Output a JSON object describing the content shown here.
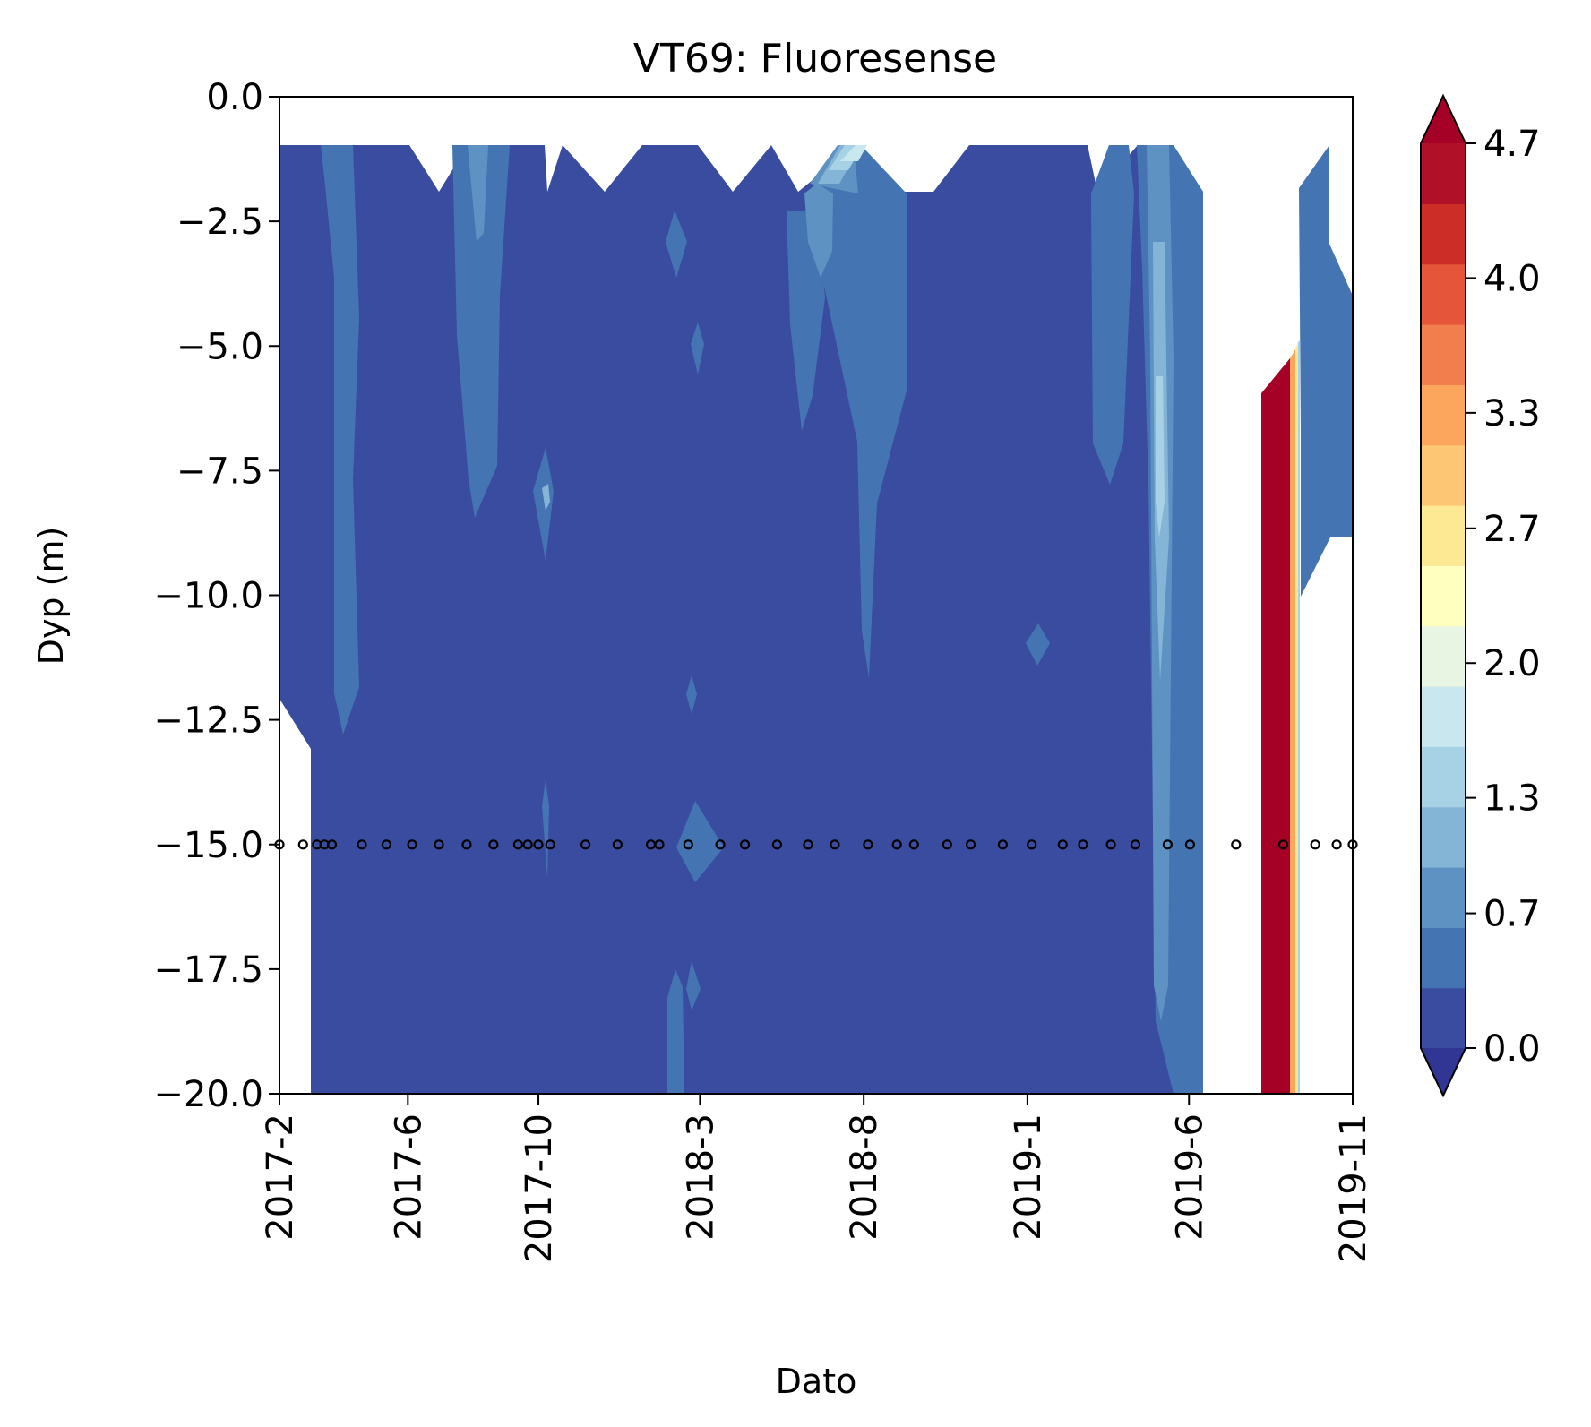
{
  "chart_data": {
    "type": "heatmap",
    "title": "VT69: Fluoresense",
    "xlabel": "Dato",
    "ylabel": "Dyp (m)",
    "x_ticks": [
      "2017-2",
      "2017-6",
      "2017-10",
      "2018-3",
      "2018-8",
      "2019-1",
      "2019-6",
      "2019-11"
    ],
    "x_tick_dates": [
      "2017-02-01",
      "2017-06-01",
      "2017-10-01",
      "2018-03-01",
      "2018-08-01",
      "2019-01-01",
      "2019-06-01",
      "2019-11-01"
    ],
    "x_range": [
      "2017-02-01",
      "2019-11-01"
    ],
    "y_ticks": [
      "0.0",
      "−2.5",
      "−5.0",
      "−7.5",
      "−10.0",
      "−12.5",
      "−15.0",
      "−17.5",
      "−20.0"
    ],
    "y_tick_values": [
      0,
      -2.5,
      -5,
      -7.5,
      -10,
      -12.5,
      -15,
      -17.5,
      -20
    ],
    "ylim": [
      -20,
      0
    ],
    "colorbar": {
      "tick_labels": [
        "4.7",
        "4.0",
        "3.3",
        "2.7",
        "2.0",
        "1.3",
        "0.7",
        "0.0"
      ],
      "tick_values": [
        4.7,
        4.0,
        3.3,
        2.7,
        2.0,
        1.3,
        0.7,
        0.0
      ],
      "vmin": 0.0,
      "vmax": 4.7,
      "extend": "both",
      "levels": [
        0.0,
        0.31,
        0.63,
        0.94,
        1.25,
        1.57,
        1.88,
        2.19,
        2.51,
        2.82,
        3.13,
        3.45,
        3.76,
        4.07,
        4.39,
        4.7
      ],
      "colors": [
        "#3a4c9f",
        "#4574b3",
        "#5e92c3",
        "#84b5d7",
        "#a7d2e5",
        "#c9e7ef",
        "#e8f5e2",
        "#ffffbf",
        "#fde894",
        "#fdc675",
        "#fca55d",
        "#f37e4d",
        "#e45539",
        "#cc2e27",
        "#b01129"
      ],
      "under_color": "#313695",
      "over_color": "#a50026"
    },
    "sample_depth": -15,
    "sample_dates": [
      "2017-02-01",
      "2017-02-23",
      "2017-03-08",
      "2017-03-15",
      "2017-03-22",
      "2017-04-19",
      "2017-05-12",
      "2017-06-05",
      "2017-06-30",
      "2017-07-26",
      "2017-08-20",
      "2017-09-12",
      "2017-09-21",
      "2017-10-01",
      "2017-10-12",
      "2017-11-14",
      "2017-12-14",
      "2018-01-14",
      "2018-01-22",
      "2018-02-18",
      "2018-03-20",
      "2018-04-12",
      "2018-05-12",
      "2018-06-10",
      "2018-07-05",
      "2018-08-05",
      "2018-09-01",
      "2018-09-17",
      "2018-10-18",
      "2018-11-09",
      "2018-12-09",
      "2019-01-05",
      "2019-02-03",
      "2019-02-22",
      "2019-03-20",
      "2019-04-12",
      "2019-05-12",
      "2019-06-02",
      "2019-07-15",
      "2019-08-28",
      "2019-09-27",
      "2019-10-17",
      "2019-11-01"
    ],
    "field_notes": "Background concentrations mostly below 0.31 across all depths; moderate values (0.31-1.6) in narrow bands near 2017-3, 2017-8, 2018-7, 2018-9 and a strong column near 2019-5 reaching ~1.6 at 5-10 m; a high-value column above 4.7 (extend) between 2019-8 and 2019-9 from -6 m to -20 m."
  }
}
